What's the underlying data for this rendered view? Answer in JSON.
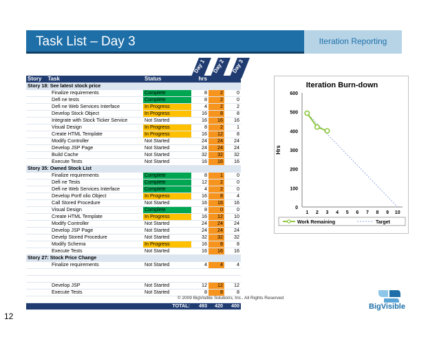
{
  "slide": {
    "title": "Task List – Day 3",
    "tag": "Iteration Reporting",
    "copyright": "© 2009 BigVisible Solutions, Inc.. All Rights Reserved",
    "page_number": "12",
    "logo_text": "BigVisible"
  },
  "table": {
    "days": [
      "Day 1",
      "Day 2",
      "Day 3"
    ],
    "headers": {
      "story": "Story",
      "task": "Task",
      "status": "Status",
      "hrs": "hrs"
    },
    "groups": [
      {
        "story": "Story 18: See latest stock price",
        "rows": [
          {
            "task": "Finalize requirements",
            "status": "Complete",
            "h": "8",
            "d1": "2",
            "d2": "0"
          },
          {
            "task": "Defi  ne tests",
            "status": "Complete",
            "h": "8",
            "d1": "2",
            "d2": "0"
          },
          {
            "task": "Defi  ne Web Services Interface",
            "status": "In Progress",
            "h": "4",
            "d1": "2",
            "d2": "2"
          },
          {
            "task": "Develop Stock Object",
            "status": "In Progress",
            "h": "16",
            "d1": "8",
            "d2": "8"
          },
          {
            "task": "Integrate with Stock Ticker Service",
            "status": "Not Started",
            "h": "16",
            "d1": "16",
            "d2": "16"
          },
          {
            "task": "Visual Design",
            "status": "In Progress",
            "h": "8",
            "d1": "2",
            "d2": "1"
          },
          {
            "task": "Create HTML Template",
            "status": "In Progress",
            "h": "16",
            "d1": "12",
            "d2": "8"
          },
          {
            "task": "Modify Controller",
            "status": "Not Started",
            "h": "24",
            "d1": "24",
            "d2": "24"
          },
          {
            "task": "Develop JSP Page",
            "status": "Not Started",
            "h": "24",
            "d1": "24",
            "d2": "24"
          },
          {
            "task": "Build Cache",
            "status": "Not Started",
            "h": "32",
            "d1": "32",
            "d2": "32"
          },
          {
            "task": "Execute Tests",
            "status": "Not Started",
            "h": "16",
            "d1": "16",
            "d2": "16"
          }
        ]
      },
      {
        "story": "Story 35: Owned Stock List",
        "rows": [
          {
            "task": "Finalize requirements",
            "status": "Complete",
            "h": "8",
            "d1": "1",
            "d2": "0"
          },
          {
            "task": "Defi  ne Tests",
            "status": "Complete",
            "h": "12",
            "d1": "2",
            "d2": "0"
          },
          {
            "task": "Defi  ne Web Services Interface",
            "status": "Complete",
            "h": "4",
            "d1": "2",
            "d2": "0"
          },
          {
            "task": "Develop Portf  olio Object",
            "status": "In Progress",
            "h": "16",
            "d1": "8",
            "d2": "4"
          },
          {
            "task": "Call Stored Procedure",
            "status": "Not Started",
            "h": "16",
            "d1": "16",
            "d2": "16"
          },
          {
            "task": "Visual Design",
            "status": "Complete",
            "h": "8",
            "d1": "0",
            "d2": "0"
          },
          {
            "task": "Create HTML Template",
            "status": "In Progress",
            "h": "16",
            "d1": "12",
            "d2": "10"
          },
          {
            "task": "Modify Controller",
            "status": "Not Started",
            "h": "24",
            "d1": "24",
            "d2": "24"
          },
          {
            "task": "Develop JSP Page",
            "status": "Not Started",
            "h": "24",
            "d1": "24",
            "d2": "24"
          },
          {
            "task": "Develp Stored Procedure",
            "status": "Not Started",
            "h": "32",
            "d1": "32",
            "d2": "32"
          },
          {
            "task": "Modify Schema",
            "status": "In Progress",
            "h": "16",
            "d1": "8",
            "d2": "8"
          },
          {
            "task": "Execute Tests",
            "status": "Not Started",
            "h": "16",
            "d1": "16",
            "d2": "16"
          }
        ]
      },
      {
        "story": "Story 27: Stock Price Change",
        "rows": [
          {
            "task": "Finalize requirements",
            "status": "Not Started",
            "h": "4",
            "d1": "4",
            "d2": "4"
          },
          {
            "task": "",
            "status": "",
            "h": "",
            "d1": "",
            "d2": ""
          },
          {
            "task": "",
            "status": "",
            "h": "",
            "d1": "",
            "d2": ""
          },
          {
            "task": "Develop JSP",
            "status": "Not Started",
            "h": "12",
            "d1": "12",
            "d2": "12"
          },
          {
            "task": "Execute Tests",
            "status": "Not Started",
            "h": "8",
            "d1": "8",
            "d2": "8"
          },
          {
            "task": "",
            "status": "",
            "h": "",
            "d1": "",
            "d2": ""
          }
        ]
      }
    ],
    "total": {
      "label": "TOTAL:",
      "h": "493",
      "d1": "420",
      "d2": "400"
    },
    "colors": {
      "complete": "#00a651",
      "in_progress": "#ffc000",
      "day_highlight": "#f7941d",
      "header": "#1f3b70"
    }
  },
  "chart_data": {
    "type": "line",
    "title": "Iteration Burn-down",
    "ylabel": "Hrs",
    "xlabel": "",
    "x": [
      1,
      2,
      3,
      4,
      5,
      6,
      7,
      8,
      9,
      10
    ],
    "ylim": [
      0,
      600
    ],
    "yticks": [
      0,
      100,
      200,
      300,
      400,
      500,
      600
    ],
    "series": [
      {
        "name": "Work Remaining",
        "color": "#8dc63f",
        "x": [
          1,
          2,
          3
        ],
        "values": [
          493,
          420,
          400
        ]
      },
      {
        "name": "Target",
        "color": "#8faadc",
        "x": [
          1,
          10
        ],
        "values": [
          493,
          0
        ]
      }
    ],
    "grid": false,
    "legend": "bottom"
  }
}
